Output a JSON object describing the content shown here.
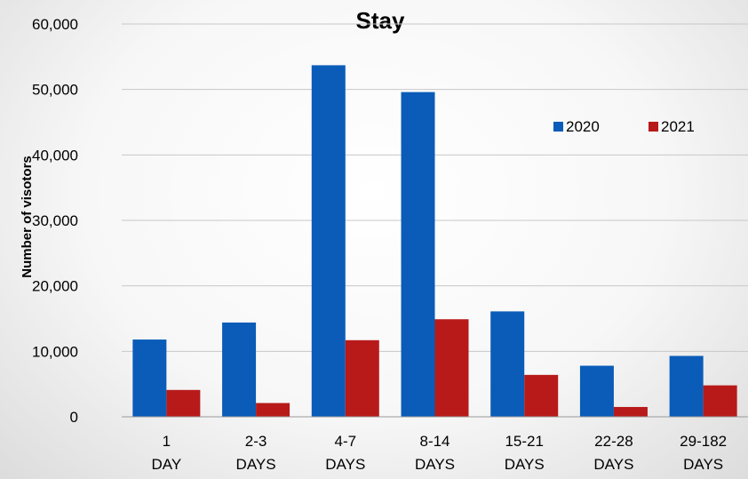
{
  "chart_data": {
    "type": "bar",
    "title": "Stay",
    "xlabel": "",
    "ylabel": "Number of visotors",
    "categories": [
      [
        "1",
        "DAY"
      ],
      [
        "2-3",
        "DAYS"
      ],
      [
        "4-7",
        "DAYS"
      ],
      [
        "8-14",
        "DAYS"
      ],
      [
        "15-21",
        "DAYS"
      ],
      [
        "22-28",
        "DAYS"
      ],
      [
        "29-182",
        "DAYS"
      ]
    ],
    "series": [
      {
        "name": "2020",
        "color": "#0a5cb8",
        "values": [
          11800,
          14400,
          53700,
          49600,
          16100,
          7800,
          9300
        ]
      },
      {
        "name": "2021",
        "color": "#b81a1a",
        "values": [
          4100,
          2100,
          11700,
          14900,
          6400,
          1500,
          4800
        ]
      }
    ],
    "ylim": [
      0,
      60000
    ],
    "yticks": [
      0,
      10000,
      20000,
      30000,
      40000,
      50000,
      60000
    ],
    "ytick_labels": [
      "0",
      "10,000",
      "20,000",
      "30,000",
      "40,000",
      "50,000",
      "60,000"
    ],
    "grid": true,
    "legend_position": "top-right"
  }
}
